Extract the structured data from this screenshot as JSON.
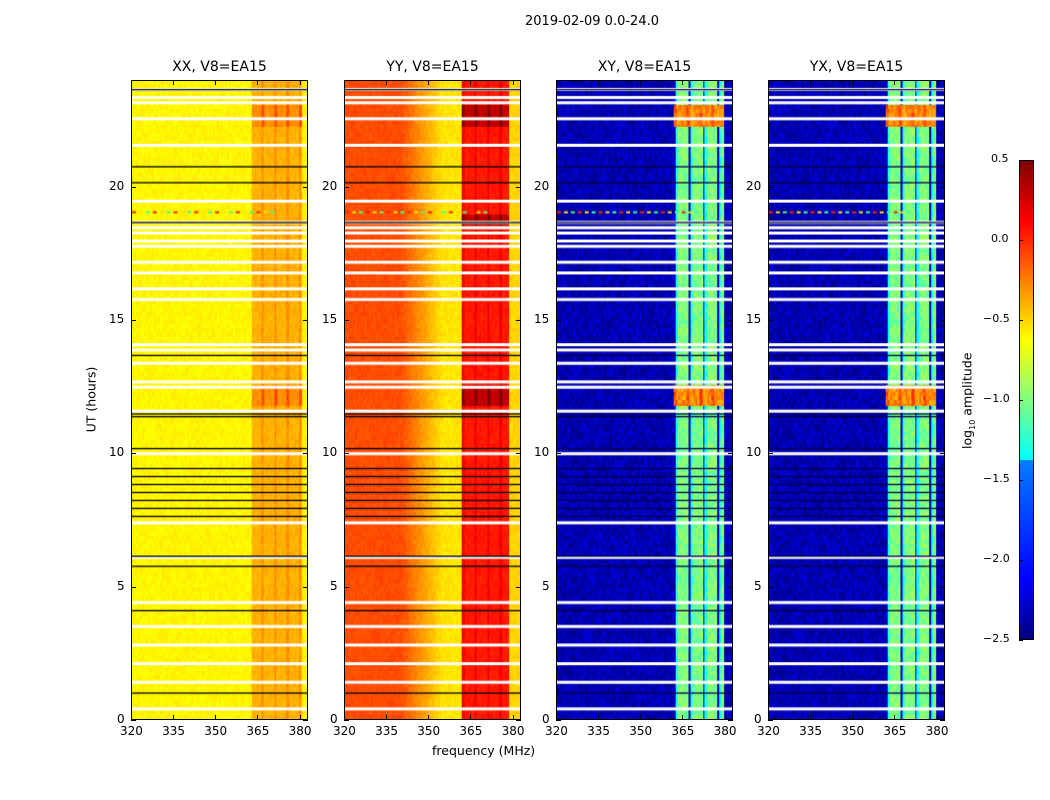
{
  "chart_data": {
    "type": "heatmap",
    "suptitle": "2019-02-09 0.0-24.0",
    "xlabel": "frequency (MHz)",
    "ylabel": "UT (hours)",
    "xlim": [
      320,
      383
    ],
    "ylim": [
      0,
      24
    ],
    "xticks": [
      "320",
      "335",
      "350",
      "365",
      "380"
    ],
    "xtick_values": [
      320,
      335,
      350,
      365,
      380
    ],
    "yticks": [
      "0",
      "5",
      "10",
      "15",
      "20"
    ],
    "ytick_values": [
      0,
      5,
      10,
      15,
      20
    ],
    "colorbar": {
      "label": "log10 amplitude",
      "label_main": "log",
      "label_sub": "10",
      "label_rest": " amplitude",
      "colormap": "jet",
      "range": [
        -2.5,
        0.5
      ],
      "ticks": [
        "0.5",
        "0.0",
        "−0.5",
        "−1.0",
        "−1.5",
        "−2.0",
        "−2.5"
      ],
      "tick_values": [
        0.5,
        0.0,
        -0.5,
        -1.0,
        -1.5,
        -2.0,
        -2.5
      ]
    },
    "flagged_hours_white": [
      23.7,
      23.4,
      23.2,
      22.6,
      21.6,
      19.5,
      18.7,
      18.5,
      18.3,
      18.0,
      17.8,
      17.2,
      16.8,
      16.2,
      15.8,
      14.1,
      13.9,
      13.4,
      12.7,
      12.5,
      11.6,
      10.0,
      7.4,
      6.1,
      4.4,
      3.5,
      2.8,
      2.1,
      1.4,
      0.4
    ],
    "black_line_hours": [
      23.7,
      20.8,
      20.2,
      18.7,
      13.7,
      11.5,
      11.4,
      10.2,
      9.45,
      9.15,
      8.85,
      8.55,
      8.25,
      7.95,
      7.65,
      6.15,
      5.77,
      4.1,
      1.0
    ],
    "rfi_hours": [
      16.2,
      19.1
    ],
    "panels": [
      {
        "title": "XX, V8=EA15",
        "base_level": -0.6,
        "band_MHz": [
          363,
          381
        ],
        "band_level": -0.4,
        "hotspot_hours": [
          [
            22.3,
            23.1
          ],
          [
            11.8,
            12.6
          ]
        ],
        "hotspot_level": -0.3
      },
      {
        "title": "YY, V8=EA15",
        "base_level": -0.1,
        "mid_level": -0.55,
        "band_MHz": [
          362,
          379
        ],
        "band_level": 0.05,
        "hotspot_hours": [
          [
            22.3,
            23.1
          ],
          [
            11.8,
            12.6
          ],
          [
            18.6,
            19.0
          ]
        ],
        "hotspot_level": 0.3
      },
      {
        "title": "XY, V8=EA15",
        "base_level": -2.35,
        "band_MHz": [
          362,
          380
        ],
        "band_level": -1.0,
        "hotspot_hours": [
          [
            22.3,
            23.1
          ],
          [
            11.8,
            12.6
          ]
        ],
        "hotspot_level": -0.3
      },
      {
        "title": "YX, V8=EA15",
        "base_level": -2.35,
        "band_MHz": [
          362,
          380
        ],
        "band_level": -1.0,
        "hotspot_hours": [
          [
            22.3,
            23.1
          ],
          [
            11.8,
            12.6
          ]
        ],
        "hotspot_level": -0.3
      }
    ]
  }
}
